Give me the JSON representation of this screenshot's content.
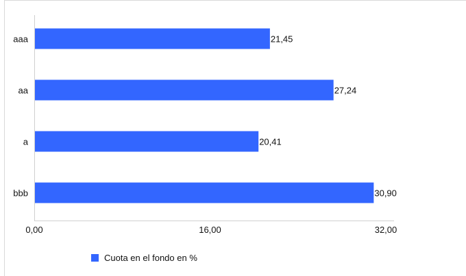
{
  "chart_data": {
    "type": "bar",
    "orientation": "horizontal",
    "categories": [
      "aaa",
      "aa",
      "a",
      "bbb"
    ],
    "series": [
      {
        "name": "Cuota en el fondo en %",
        "values": [
          21.45,
          27.24,
          20.41,
          30.9
        ],
        "value_labels": [
          "21,45",
          "27,24",
          "20,41",
          "30,90"
        ],
        "color": "#3366ff"
      }
    ],
    "xlim": [
      0,
      32
    ],
    "x_ticks": [
      {
        "value": 0,
        "label": "0,00"
      },
      {
        "value": 16,
        "label": "16,00"
      },
      {
        "value": 32,
        "label": "32,00"
      }
    ],
    "grid": false,
    "legend_position": "bottom-left"
  }
}
